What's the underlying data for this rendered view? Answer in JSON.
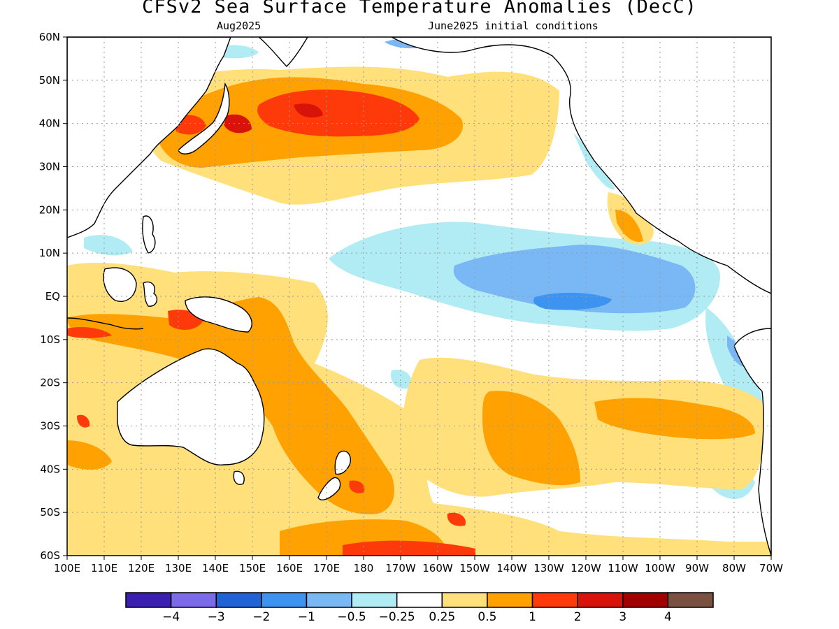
{
  "title": "CFSv2 Sea Surface Temperature Anomalies (DecC)",
  "subtitle_left": "Aug2025",
  "subtitle_right": "June2025 initial conditions",
  "map": {
    "lat_labels": [
      "60N",
      "50N",
      "40N",
      "30N",
      "20N",
      "10N",
      "EQ",
      "10S",
      "20S",
      "30S",
      "40S",
      "50S",
      "60S"
    ],
    "lon_labels": [
      "100E",
      "110E",
      "120E",
      "130E",
      "140E",
      "150E",
      "160E",
      "170E",
      "180",
      "170W",
      "160W",
      "150W",
      "140W",
      "130W",
      "120W",
      "110W",
      "100W",
      "90W",
      "80W",
      "70W"
    ],
    "grid": true
  },
  "colorbar": {
    "colors": [
      "#3a1fb0",
      "#7c6be8",
      "#1f63d6",
      "#3d93f0",
      "#7ab8f5",
      "#b1ecf5",
      "#ffffff",
      "#ffe07a",
      "#ffa100",
      "#ff3a0a",
      "#d8140a",
      "#a00000",
      "#7a5040"
    ],
    "labels": [
      "−4",
      "−3",
      "−2",
      "−1",
      "−0.5",
      "−0.25",
      "0.25",
      "0.5",
      "1",
      "2",
      "3",
      "4"
    ]
  }
}
